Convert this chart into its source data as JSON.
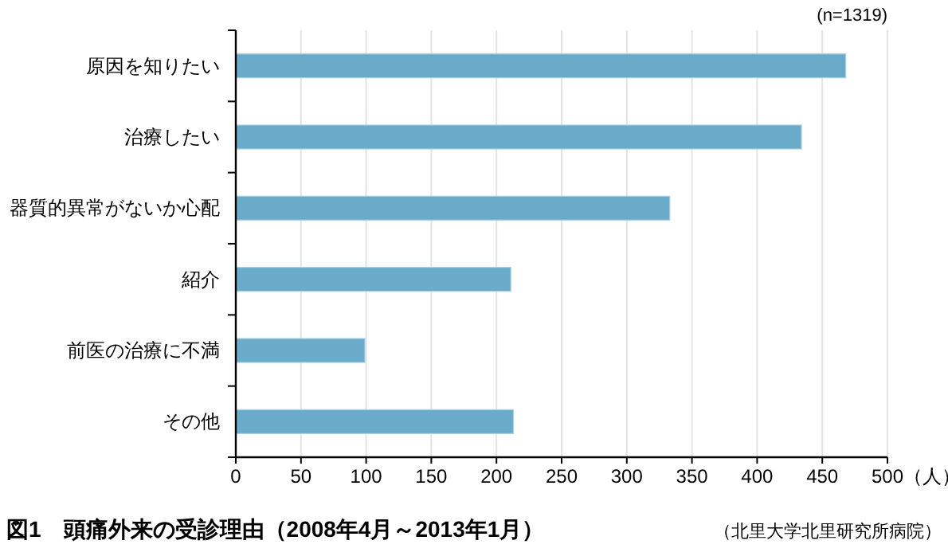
{
  "chart_data": {
    "type": "bar",
    "orientation": "horizontal",
    "title": "図1　頭痛外来の受診理由（2008年4月～2013年1月）",
    "categories": [
      "原因を知りたい",
      "治療したい",
      "器質的異常がないか心配",
      "紹介",
      "前医の治療に不満",
      "その他"
    ],
    "values": [
      468,
      434,
      333,
      211,
      99,
      213
    ],
    "color": "#6aabca",
    "xlim": [
      0,
      500
    ],
    "xticks": [
      0,
      50,
      100,
      150,
      200,
      250,
      300,
      350,
      400,
      450,
      500
    ],
    "xlabel": "（人）",
    "grid": "x",
    "annotations": [
      "(n=1319)",
      "（北里大学北里研究所病院）"
    ]
  }
}
